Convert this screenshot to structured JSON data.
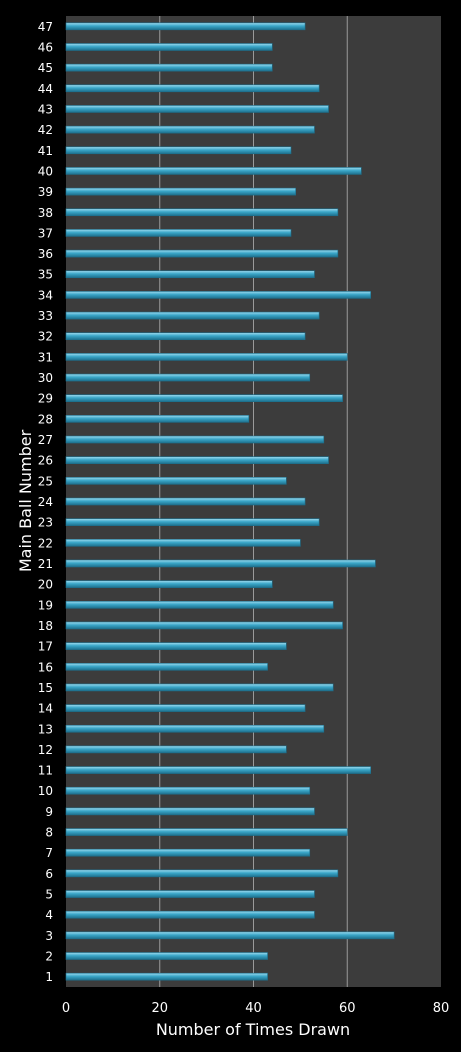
{
  "chart_data": {
    "type": "bar",
    "orientation": "horizontal",
    "xlabel": "Number of Times Drawn",
    "ylabel": "Main Ball Number",
    "xlim": [
      0,
      80
    ],
    "xticks": [
      0,
      20,
      40,
      60,
      80
    ],
    "grid": true,
    "categories": [
      "1",
      "2",
      "3",
      "4",
      "5",
      "6",
      "7",
      "8",
      "9",
      "10",
      "11",
      "12",
      "13",
      "14",
      "15",
      "16",
      "17",
      "18",
      "19",
      "20",
      "21",
      "22",
      "23",
      "24",
      "25",
      "26",
      "27",
      "28",
      "29",
      "30",
      "31",
      "32",
      "33",
      "34",
      "35",
      "36",
      "37",
      "38",
      "39",
      "40",
      "41",
      "42",
      "43",
      "44",
      "45",
      "46",
      "47"
    ],
    "values": [
      43,
      43,
      70,
      53,
      53,
      58,
      52,
      60,
      53,
      52,
      65,
      47,
      55,
      51,
      57,
      43,
      47,
      59,
      57,
      44,
      66,
      50,
      54,
      51,
      47,
      56,
      55,
      39,
      59,
      52,
      60,
      51,
      54,
      65,
      53,
      58,
      48,
      58,
      49,
      63,
      48,
      53,
      56,
      54,
      44,
      44,
      51
    ],
    "colors": {
      "bar": "#3aa6c8",
      "bar_light": "#9fdcf0",
      "bar_dark": "#1d6f8c",
      "plot_bg": "#3c3c3c",
      "grid": "#9a9a9a",
      "page_bg": "#000000"
    }
  }
}
